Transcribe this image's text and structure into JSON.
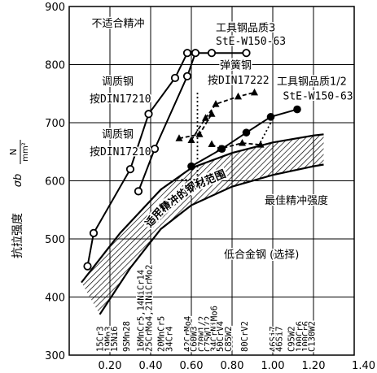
{
  "chart_data": {
    "type": "line",
    "title": "",
    "xlabel": "",
    "ylabel": "抗拉强度",
    "ylabel_symbol": "σb",
    "ylabel_unit_num": "N",
    "ylabel_unit_den": "mm²",
    "xlim": [
      0,
      1.4
    ],
    "ylim": [
      300,
      900
    ],
    "grid": true,
    "x_ticks": [
      {
        "v": 0.2,
        "label": "0.20"
      },
      {
        "v": 0.4,
        "label": "0.40"
      },
      {
        "v": 0.6,
        "label": "0.60"
      },
      {
        "v": 0.8,
        "label": "0.80"
      },
      {
        "v": 1.0,
        "label": "1.00"
      },
      {
        "v": 1.2,
        "label": "1.20"
      },
      {
        "v": 1.4,
        "label": "1.40"
      }
    ],
    "y_ticks": [
      {
        "v": 300,
        "label": "300"
      },
      {
        "v": 400,
        "label": "400"
      },
      {
        "v": 500,
        "label": "500"
      },
      {
        "v": 600,
        "label": "600"
      },
      {
        "v": 700,
        "label": "700"
      },
      {
        "v": 800,
        "label": "800"
      },
      {
        "v": 900,
        "label": "900"
      }
    ],
    "series": [
      {
        "key": "s1",
        "style": "solid",
        "marker": "open-circle",
        "points": [
          [
            0.09,
            453
          ],
          [
            0.12,
            510
          ],
          [
            0.3,
            620
          ],
          [
            0.39,
            715
          ],
          [
            0.52,
            777
          ],
          [
            0.58,
            820
          ],
          [
            0.7,
            820
          ],
          [
            0.87,
            820
          ]
        ]
      },
      {
        "key": "s2",
        "style": "solid",
        "marker": "open-circle",
        "points": [
          [
            0.34,
            582
          ],
          [
            0.42,
            655
          ],
          [
            0.58,
            780
          ],
          [
            0.62,
            820
          ]
        ]
      },
      {
        "key": "s3",
        "style": "solid",
        "marker": "filled-circle",
        "points": [
          [
            0.6,
            625
          ],
          [
            0.75,
            655
          ],
          [
            0.87,
            683
          ],
          [
            0.99,
            710
          ],
          [
            1.12,
            723
          ]
        ]
      },
      {
        "key": "s4",
        "style": "dashed",
        "marker": "triangle",
        "points": [
          [
            0.6,
            670
          ],
          [
            0.67,
            708
          ],
          [
            0.72,
            732
          ],
          [
            0.83,
            745
          ],
          [
            0.91,
            752
          ]
        ]
      },
      {
        "key": "s5",
        "style": "dashed",
        "marker": "triangle",
        "points": [
          [
            0.54,
            673
          ],
          [
            0.64,
            680
          ],
          [
            0.7,
            715
          ]
        ]
      },
      {
        "key": "s6",
        "style": "dashed",
        "marker": "triangle",
        "points": [
          [
            0.7,
            663
          ],
          [
            0.74,
            655
          ],
          [
            0.85,
            665
          ],
          [
            0.94,
            662
          ]
        ]
      },
      {
        "key": "s7",
        "style": "dotted",
        "marker": "none",
        "points": [
          [
            0.55,
            602
          ],
          [
            0.63,
            602
          ],
          [
            0.63,
            752
          ]
        ]
      },
      {
        "key": "s8",
        "style": "dotted",
        "marker": "none",
        "points": [
          [
            0.93,
            660
          ],
          [
            0.99,
            700
          ]
        ]
      }
    ],
    "band": {
      "label": "适用精冲的钢材范围",
      "upper": [
        [
          0.06,
          425
        ],
        [
          0.25,
          510
        ],
        [
          0.45,
          585
        ],
        [
          0.6,
          622
        ],
        [
          0.8,
          648
        ],
        [
          1.0,
          666
        ],
        [
          1.2,
          678
        ],
        [
          1.25,
          680
        ]
      ],
      "lower": [
        [
          0.15,
          370
        ],
        [
          0.3,
          450
        ],
        [
          0.45,
          517
        ],
        [
          0.6,
          558
        ],
        [
          0.8,
          590
        ],
        [
          1.0,
          610
        ],
        [
          1.2,
          625
        ],
        [
          1.25,
          628
        ]
      ]
    },
    "region_labels": [
      {
        "text": "不适合精冲",
        "x": 0.11,
        "y": 865
      },
      {
        "text": "调质钢",
        "x": 0.16,
        "y": 765
      },
      {
        "text": "按DIN17210",
        "x": 0.1,
        "y": 735,
        "mono": true
      },
      {
        "text": "调质钢",
        "x": 0.16,
        "y": 674
      },
      {
        "text": "按DIN17210",
        "x": 0.1,
        "y": 644,
        "mono": true
      },
      {
        "text": "工具钢品质3",
        "x": 0.72,
        "y": 857
      },
      {
        "text": "StE-W150-63",
        "x": 0.72,
        "y": 834,
        "mono": true
      },
      {
        "text": "弹簧钢",
        "x": 0.74,
        "y": 793
      },
      {
        "text": "按DIN17222",
        "x": 0.68,
        "y": 767,
        "mono": true
      },
      {
        "text": "工具钢品质1/2",
        "x": 1.02,
        "y": 765
      },
      {
        "text": "StE-W150-63",
        "x": 1.05,
        "y": 740,
        "mono": true
      },
      {
        "text": "最佳精冲强度",
        "x": 0.96,
        "y": 560
      },
      {
        "text": "低合金钢 (选择)",
        "x": 0.76,
        "y": 467
      }
    ],
    "steel_grades": [
      {
        "v": 0.15,
        "lines": [
          "15Cr3"
        ]
      },
      {
        "v": 0.19,
        "lines": [
          "19Mn3"
        ]
      },
      {
        "v": 0.22,
        "lines": [
          "15Ni6"
        ]
      },
      {
        "v": 0.28,
        "lines": [
          "9SMn28"
        ]
      },
      {
        "v": 0.35,
        "lines": [
          "16MnCr5,14NiCr14"
        ]
      },
      {
        "v": 0.39,
        "lines": [
          "25CrMo4,21NiCrMo2"
        ]
      },
      {
        "v": 0.45,
        "lines": [
          "20MnCr5"
        ]
      },
      {
        "v": 0.49,
        "lines": [
          "34Cr4"
        ]
      },
      {
        "v": 0.58,
        "lines": [
          "42CrMo4"
        ]
      },
      {
        "v": 0.61,
        "lines": [
          "C60W3"
        ]
      },
      {
        "v": 0.65,
        "lines": [
          "C70W1/2"
        ]
      },
      {
        "v": 0.68,
        "lines": [
          "C75W1/2"
        ]
      },
      {
        "v": 0.71,
        "lines": [
          "34CrNiMo6"
        ]
      },
      {
        "v": 0.74,
        "lines": [
          "50CrV4"
        ]
      },
      {
        "v": 0.78,
        "lines": [
          "C85W2"
        ]
      },
      {
        "v": 0.86,
        "lines": [
          "80CrV2"
        ]
      },
      {
        "v": 1.0,
        "lines": [
          "46Si7"
        ]
      },
      {
        "v": 1.03,
        "lines": [
          "46Si7"
        ]
      },
      {
        "v": 1.09,
        "lines": [
          "C95W2"
        ]
      },
      {
        "v": 1.13,
        "lines": [
          "100Cr6"
        ]
      },
      {
        "v": 1.16,
        "lines": [
          "100Cr6"
        ]
      },
      {
        "v": 1.19,
        "lines": [
          "C130W2"
        ]
      }
    ]
  }
}
